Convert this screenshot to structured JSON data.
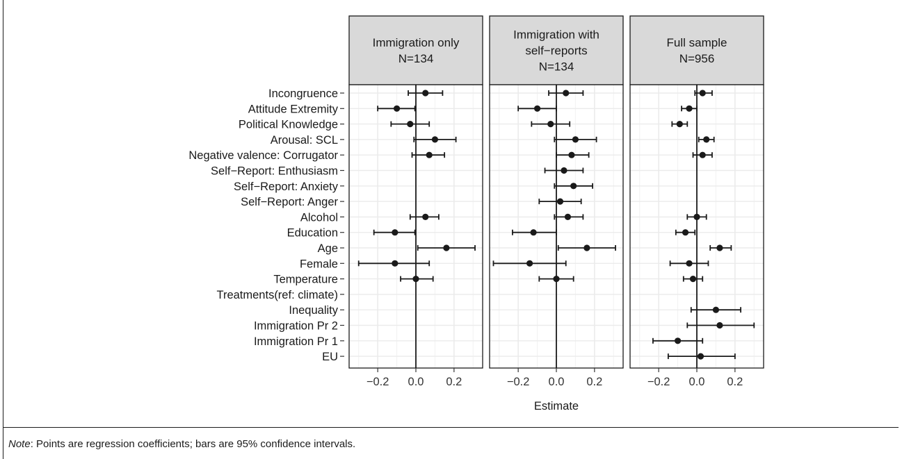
{
  "chart_data": {
    "type": "scatter",
    "subtype": "coefficient-plot",
    "xlabel": "Estimate",
    "xlim": [
      -0.35,
      0.35
    ],
    "xticks": [
      -0.2,
      0.0,
      0.2
    ],
    "xtick_labels": [
      "−0.2",
      "0.0",
      "0.2"
    ],
    "grid": true,
    "reference_line": 0,
    "point_color": "#1a1a1a",
    "grid_color": "#ebebeb",
    "strip_fill": "#d9d9d9",
    "variables": [
      "Incongruence",
      "Attitude Extremity",
      "Political Knowledge",
      "Arousal: SCL",
      "Negative valence: Corrugator",
      "Self−Report: Enthusiasm",
      "Self−Report: Anxiety",
      "Self−Report: Anger",
      "Alcohol",
      "Education",
      "Age",
      "Female",
      "Temperature",
      "Treatments(ref: climate)",
      "Inequality",
      "Immigration Pr 2",
      "Immigration Pr 1",
      "EU"
    ],
    "panels": [
      {
        "title_lines": [
          "Immigration only",
          "N=134"
        ],
        "estimates": [
          {
            "est": 0.05,
            "lo": -0.04,
            "hi": 0.14
          },
          {
            "est": -0.1,
            "lo": -0.2,
            "hi": -0.005
          },
          {
            "est": -0.03,
            "lo": -0.13,
            "hi": 0.07
          },
          {
            "est": 0.1,
            "lo": -0.01,
            "hi": 0.21
          },
          {
            "est": 0.07,
            "lo": -0.02,
            "hi": 0.15
          },
          null,
          null,
          null,
          {
            "est": 0.05,
            "lo": -0.03,
            "hi": 0.12
          },
          {
            "est": -0.11,
            "lo": -0.22,
            "hi": -0.005
          },
          {
            "est": 0.16,
            "lo": 0.01,
            "hi": 0.31
          },
          {
            "est": -0.11,
            "lo": -0.3,
            "hi": 0.07
          },
          {
            "est": 0.0,
            "lo": -0.08,
            "hi": 0.09
          },
          null,
          null,
          null,
          null,
          null
        ]
      },
      {
        "title_lines": [
          "Immigration with",
          "self−reports",
          "N=134"
        ],
        "estimates": [
          {
            "est": 0.05,
            "lo": -0.04,
            "hi": 0.14
          },
          {
            "est": -0.1,
            "lo": -0.2,
            "hi": 0.0
          },
          {
            "est": -0.03,
            "lo": -0.13,
            "hi": 0.07
          },
          {
            "est": 0.1,
            "lo": -0.01,
            "hi": 0.21
          },
          {
            "est": 0.08,
            "lo": 0.0,
            "hi": 0.17
          },
          {
            "est": 0.04,
            "lo": -0.06,
            "hi": 0.14
          },
          {
            "est": 0.09,
            "lo": -0.01,
            "hi": 0.19
          },
          {
            "est": 0.02,
            "lo": -0.09,
            "hi": 0.13
          },
          {
            "est": 0.06,
            "lo": -0.01,
            "hi": 0.14
          },
          {
            "est": -0.12,
            "lo": -0.23,
            "hi": 0.0
          },
          {
            "est": 0.16,
            "lo": 0.01,
            "hi": 0.31
          },
          {
            "est": -0.14,
            "lo": -0.33,
            "hi": 0.05
          },
          {
            "est": 0.0,
            "lo": -0.09,
            "hi": 0.09
          },
          null,
          null,
          null,
          null,
          null
        ]
      },
      {
        "title_lines": [
          "Full sample",
          "N=956"
        ],
        "estimates": [
          {
            "est": 0.03,
            "lo": -0.01,
            "hi": 0.08
          },
          {
            "est": -0.04,
            "lo": -0.08,
            "hi": 0.0
          },
          {
            "est": -0.09,
            "lo": -0.13,
            "hi": -0.05
          },
          {
            "est": 0.05,
            "lo": 0.01,
            "hi": 0.09
          },
          {
            "est": 0.03,
            "lo": -0.02,
            "hi": 0.08
          },
          null,
          null,
          null,
          {
            "est": 0.0,
            "lo": -0.05,
            "hi": 0.05
          },
          {
            "est": -0.06,
            "lo": -0.11,
            "hi": -0.01
          },
          {
            "est": 0.12,
            "lo": 0.07,
            "hi": 0.18
          },
          {
            "est": -0.04,
            "lo": -0.14,
            "hi": 0.06
          },
          {
            "est": -0.02,
            "lo": -0.07,
            "hi": 0.03
          },
          null,
          {
            "est": 0.1,
            "lo": -0.03,
            "hi": 0.23
          },
          {
            "est": 0.12,
            "lo": -0.05,
            "hi": 0.3
          },
          {
            "est": -0.1,
            "lo": -0.23,
            "hi": 0.03
          },
          {
            "est": 0.02,
            "lo": -0.15,
            "hi": 0.2
          }
        ]
      }
    ]
  },
  "note": {
    "label": "Note",
    "text": ": Points are regression coefficients; bars are 95% confidence intervals."
  }
}
